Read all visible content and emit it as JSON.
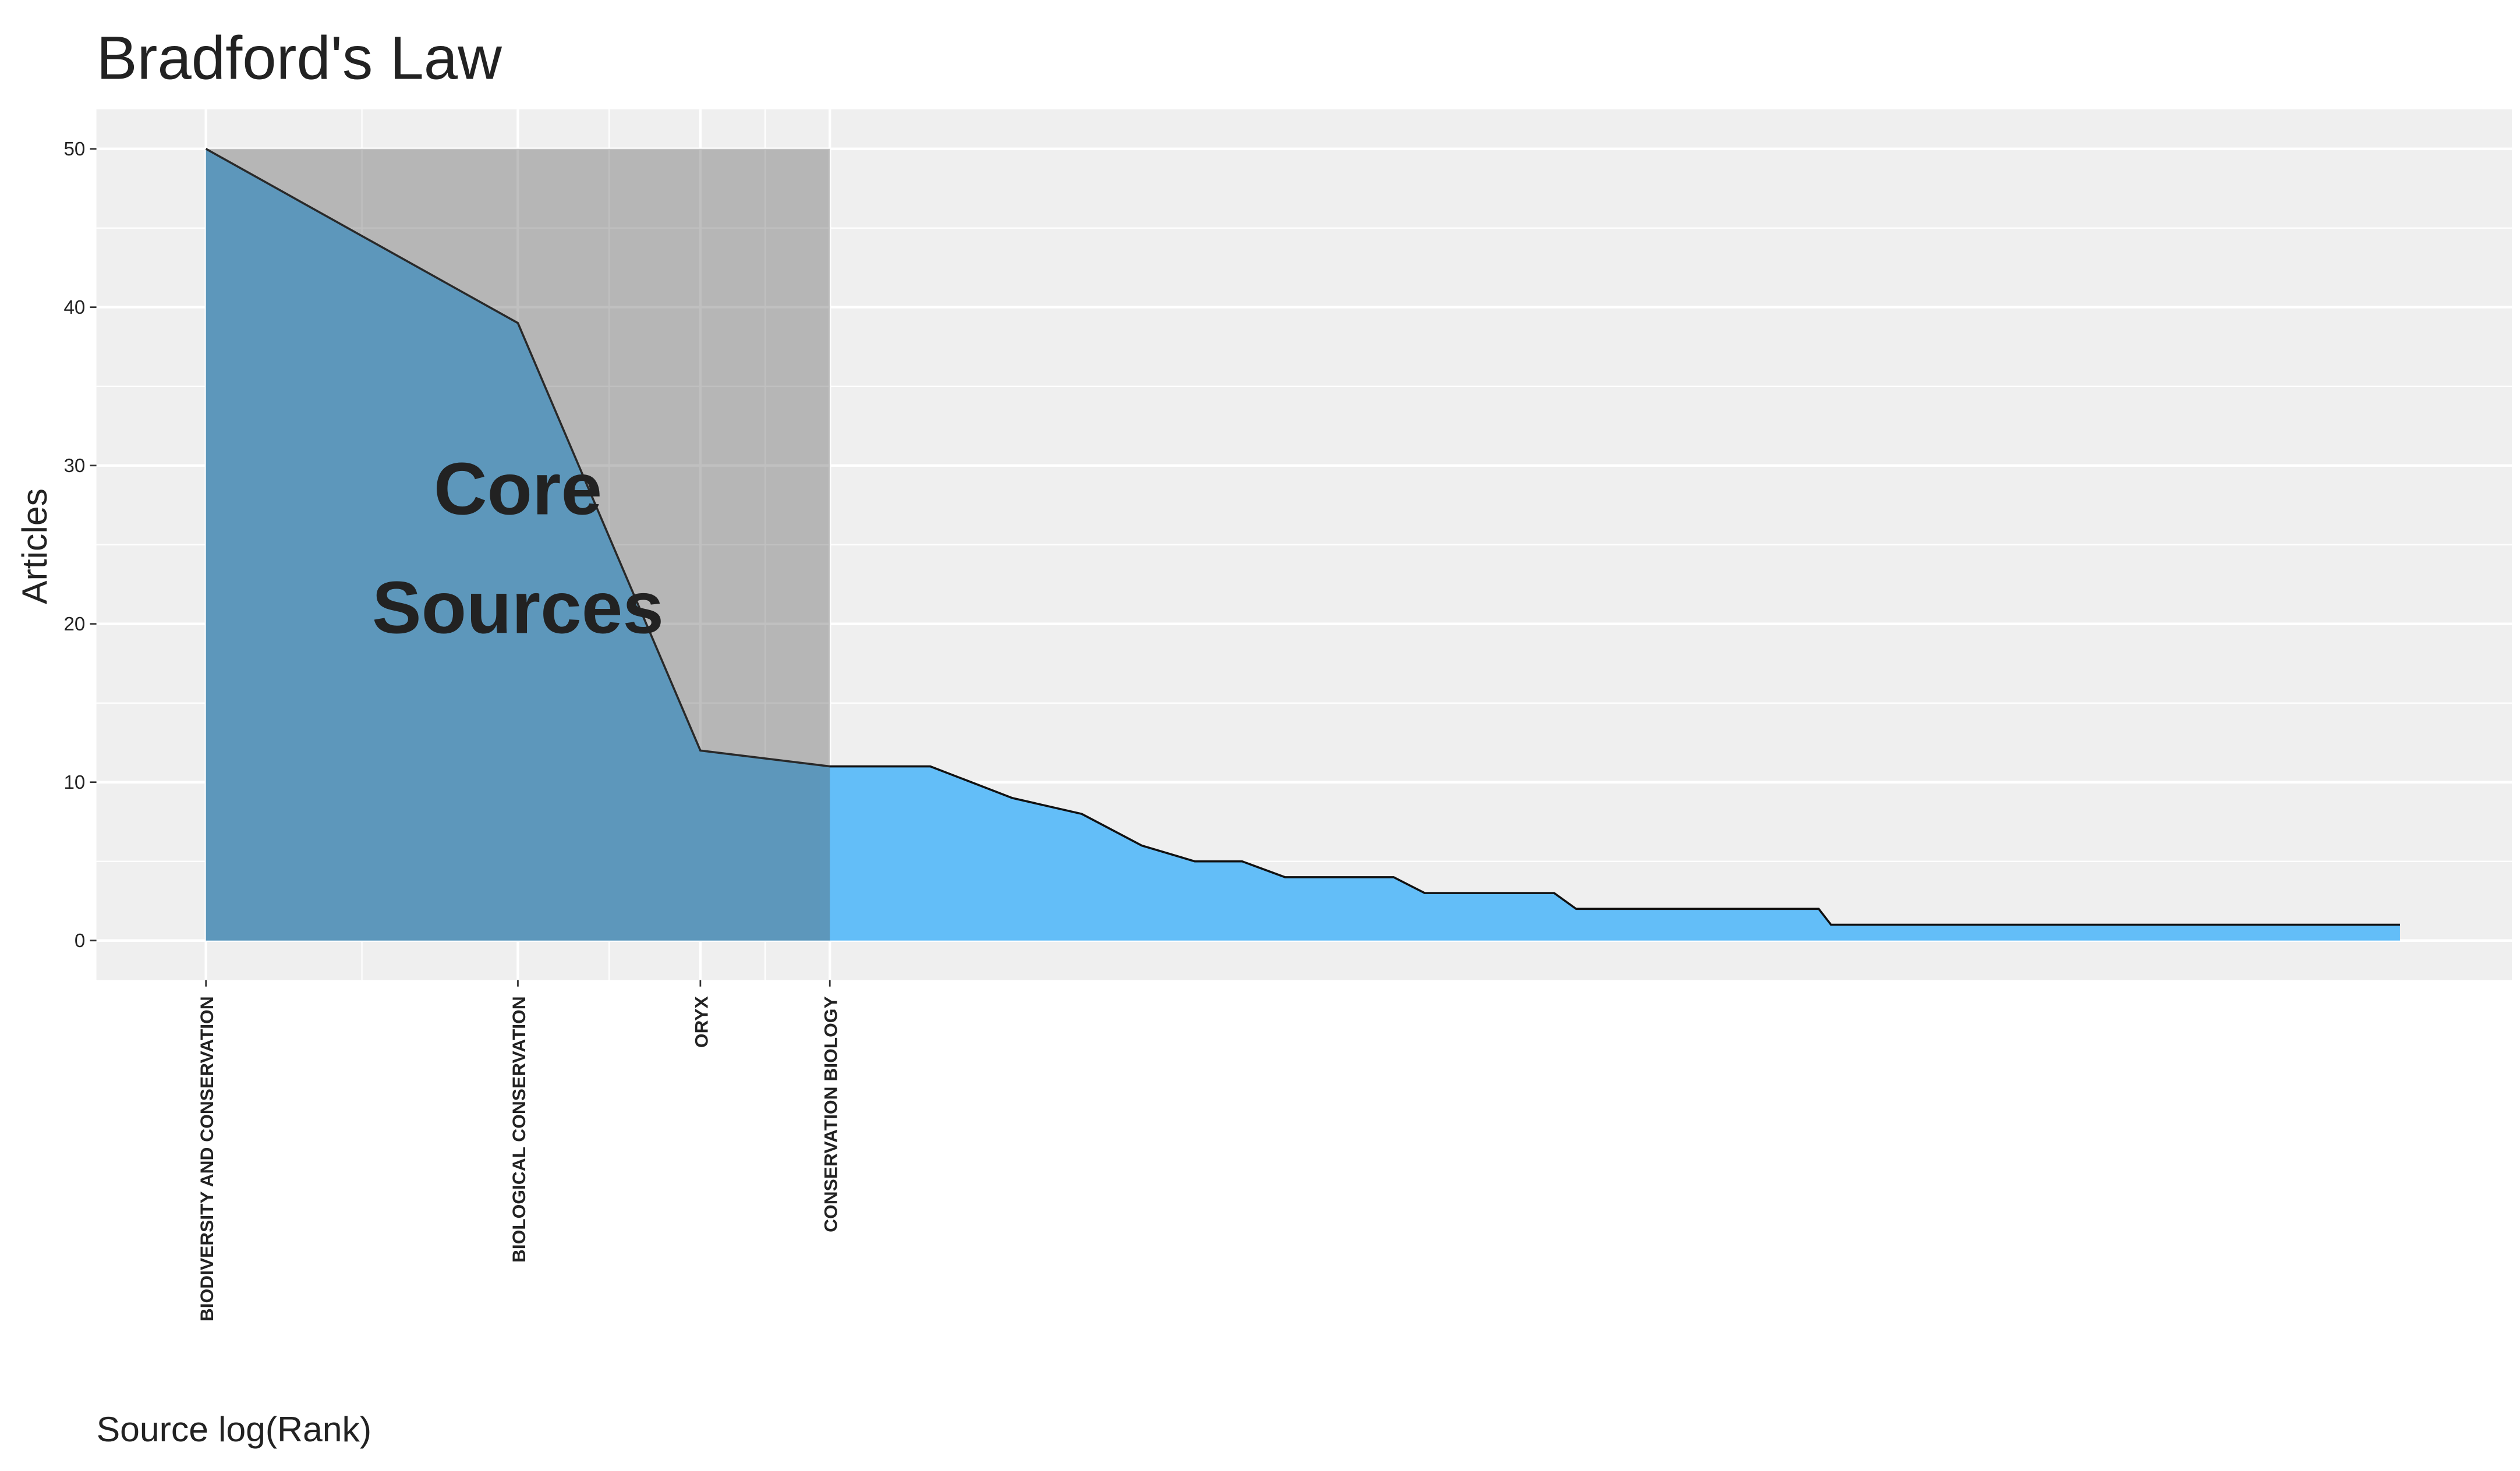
{
  "chart_data": {
    "type": "area",
    "title": "Bradford's Law",
    "x_label": "Source log(Rank)",
    "y_label": "Articles",
    "x": [
      1,
      2,
      3,
      4,
      5,
      6,
      7,
      8,
      9,
      10,
      11,
      14,
      15,
      20,
      21,
      36,
      37,
      131
    ],
    "values": [
      50,
      39,
      12,
      11,
      11,
      9,
      8,
      6,
      5,
      5,
      4,
      4,
      3,
      3,
      2,
      2,
      1,
      1
    ],
    "color": "#63bef8",
    "xlog": true,
    "xlim": [
      0.784,
      168
    ],
    "xticks": [
      {
        "value": 1,
        "label": "BIODIVERSITY AND CONSERVATION"
      },
      {
        "value": 2,
        "label": "BIOLOGICAL CONSERVATION"
      },
      {
        "value": 3,
        "label": "ORYX"
      },
      {
        "value": 4,
        "label": "CONSERVATION BIOLOGY"
      }
    ],
    "ylim": [
      -2.5,
      52.5
    ],
    "yticks": [
      0,
      10,
      20,
      30,
      40,
      50
    ],
    "grid": true,
    "core_zone": {
      "xlim": [
        1,
        4
      ],
      "ymax": 50,
      "color": "#545454"
    },
    "annotation": [
      "Core",
      "Sources"
    ]
  }
}
